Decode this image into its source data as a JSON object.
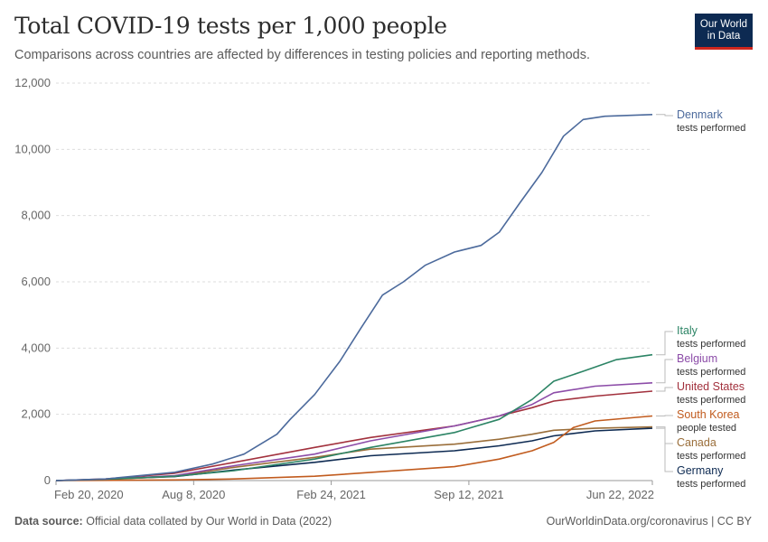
{
  "header": {
    "title": "Total COVID-19 tests per 1,000 people",
    "subtitle": "Comparisons across countries are affected by differences in testing policies and reporting methods.",
    "logo_line1": "Our World",
    "logo_line2": "in Data"
  },
  "footer": {
    "source_label": "Data source:",
    "source_text": "Official data collated by Our World in Data (2022)",
    "right": "OurWorldinData.org/coronavirus | CC BY"
  },
  "chart_data": {
    "type": "line",
    "title": "Total COVID-19 tests per 1,000 people",
    "x_ticks": [
      "Feb 20, 2020",
      "Aug 8, 2020",
      "Feb 24, 2021",
      "Sep 12, 2021",
      "Jun 22, 2022"
    ],
    "xlim": [
      "2020-02-20",
      "2022-06-22"
    ],
    "ylim": [
      0,
      12000
    ],
    "y_ticks": [
      "0",
      "2,000",
      "4,000",
      "6,000",
      "8,000",
      "10,000",
      "12,000"
    ],
    "grid": "horizontal dashed",
    "legend": "right, labels at line ends",
    "series": [
      {
        "name": "Denmark",
        "sublabel": "tests performed",
        "color": "#4c6a9c",
        "points": [
          [
            "2020-02-20",
            0
          ],
          [
            "2020-05-01",
            50
          ],
          [
            "2020-08-08",
            250
          ],
          [
            "2020-10-01",
            500
          ],
          [
            "2020-11-15",
            800
          ],
          [
            "2021-01-01",
            1400
          ],
          [
            "2021-01-20",
            1850
          ],
          [
            "2021-02-24",
            2600
          ],
          [
            "2021-04-01",
            3600
          ],
          [
            "2021-05-01",
            4600
          ],
          [
            "2021-06-01",
            5600
          ],
          [
            "2021-07-01",
            6000
          ],
          [
            "2021-08-01",
            6500
          ],
          [
            "2021-09-12",
            6900
          ],
          [
            "2021-10-20",
            7100
          ],
          [
            "2021-11-15",
            7500
          ],
          [
            "2021-12-15",
            8400
          ],
          [
            "2022-01-15",
            9300
          ],
          [
            "2022-02-15",
            10400
          ],
          [
            "2022-03-15",
            10900
          ],
          [
            "2022-04-15",
            11000
          ],
          [
            "2022-06-22",
            11050
          ]
        ]
      },
      {
        "name": "Italy",
        "sublabel": "tests performed",
        "color": "#2c8465",
        "points": [
          [
            "2020-02-20",
            0
          ],
          [
            "2020-05-01",
            40
          ],
          [
            "2020-08-08",
            130
          ],
          [
            "2020-11-01",
            300
          ],
          [
            "2021-02-24",
            650
          ],
          [
            "2021-05-15",
            1000
          ],
          [
            "2021-09-12",
            1450
          ],
          [
            "2021-11-15",
            1850
          ],
          [
            "2022-01-01",
            2450
          ],
          [
            "2022-02-01",
            3000
          ],
          [
            "2022-03-15",
            3300
          ],
          [
            "2022-05-01",
            3650
          ],
          [
            "2022-06-22",
            3800
          ]
        ]
      },
      {
        "name": "Belgium",
        "sublabel": "tests performed",
        "color": "#8c4ca8",
        "points": [
          [
            "2020-02-20",
            0
          ],
          [
            "2020-05-01",
            40
          ],
          [
            "2020-08-08",
            150
          ],
          [
            "2020-11-01",
            450
          ],
          [
            "2021-02-24",
            800
          ],
          [
            "2021-05-15",
            1200
          ],
          [
            "2021-09-12",
            1650
          ],
          [
            "2021-11-15",
            1950
          ],
          [
            "2022-01-01",
            2300
          ],
          [
            "2022-02-01",
            2650
          ],
          [
            "2022-04-01",
            2850
          ],
          [
            "2022-06-22",
            2950
          ]
        ]
      },
      {
        "name": "United States",
        "sublabel": "tests performed",
        "color": "#a2313d",
        "points": [
          [
            "2020-02-20",
            0
          ],
          [
            "2020-05-01",
            50
          ],
          [
            "2020-08-08",
            220
          ],
          [
            "2020-11-01",
            550
          ],
          [
            "2021-02-24",
            1000
          ],
          [
            "2021-05-15",
            1300
          ],
          [
            "2021-09-12",
            1650
          ],
          [
            "2021-11-15",
            1950
          ],
          [
            "2022-01-01",
            2200
          ],
          [
            "2022-02-01",
            2400
          ],
          [
            "2022-04-01",
            2550
          ],
          [
            "2022-06-22",
            2700
          ]
        ]
      },
      {
        "name": "South Korea",
        "sublabel": "people tested",
        "color": "#c15b1e",
        "points": [
          [
            "2020-02-20",
            0
          ],
          [
            "2020-08-08",
            20
          ],
          [
            "2020-11-01",
            50
          ],
          [
            "2021-02-24",
            130
          ],
          [
            "2021-09-12",
            420
          ],
          [
            "2021-11-15",
            650
          ],
          [
            "2022-01-01",
            900
          ],
          [
            "2022-02-01",
            1150
          ],
          [
            "2022-03-01",
            1600
          ],
          [
            "2022-04-01",
            1800
          ],
          [
            "2022-06-22",
            1950
          ]
        ]
      },
      {
        "name": "Canada",
        "sublabel": "tests performed",
        "color": "#9a6e3a",
        "points": [
          [
            "2020-02-20",
            0
          ],
          [
            "2020-05-01",
            30
          ],
          [
            "2020-08-08",
            130
          ],
          [
            "2020-11-01",
            400
          ],
          [
            "2021-02-24",
            700
          ],
          [
            "2021-05-15",
            950
          ],
          [
            "2021-09-12",
            1100
          ],
          [
            "2021-11-15",
            1250
          ],
          [
            "2022-01-01",
            1400
          ],
          [
            "2022-02-01",
            1520
          ],
          [
            "2022-04-01",
            1580
          ],
          [
            "2022-06-22",
            1620
          ]
        ]
      },
      {
        "name": "Germany",
        "sublabel": "tests performed",
        "color": "#0d2a52",
        "points": [
          [
            "2020-02-20",
            0
          ],
          [
            "2020-05-01",
            40
          ],
          [
            "2020-08-08",
            120
          ],
          [
            "2020-11-01",
            320
          ],
          [
            "2021-02-24",
            550
          ],
          [
            "2021-05-15",
            750
          ],
          [
            "2021-09-12",
            900
          ],
          [
            "2021-11-15",
            1050
          ],
          [
            "2022-01-01",
            1200
          ],
          [
            "2022-02-01",
            1350
          ],
          [
            "2022-04-01",
            1500
          ],
          [
            "2022-06-22",
            1580
          ]
        ]
      }
    ]
  }
}
